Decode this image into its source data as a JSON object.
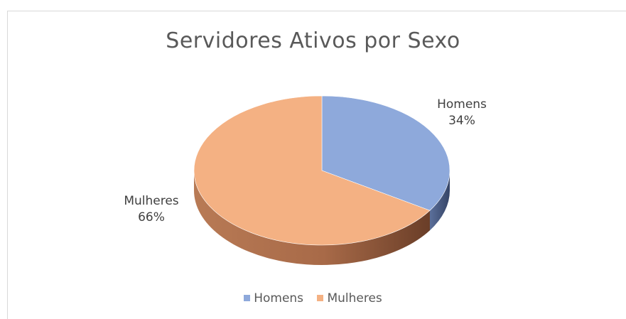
{
  "chart_data": {
    "type": "pie",
    "title": "Servidores Ativos por Sexo",
    "categories": [
      "Homens",
      "Mulheres"
    ],
    "values": [
      34,
      66
    ],
    "data_labels": [
      {
        "category": "Homens",
        "percent": "34%"
      },
      {
        "category": "Mulheres",
        "percent": "66%"
      }
    ],
    "colors": [
      "#8EA9DB",
      "#F4B183"
    ],
    "legend": {
      "placement": "bottom",
      "entries": [
        "Homens",
        "Mulheres"
      ]
    }
  }
}
